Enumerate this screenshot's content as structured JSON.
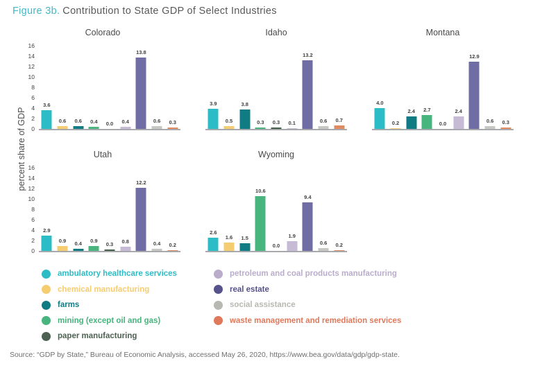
{
  "title": {
    "label": "Figure 3b.",
    "text": "Contribution to State GDP of Select Industries"
  },
  "chart_data": {
    "type": "bar",
    "title": "Figure 3b. Contribution to State GDP of Select Industries",
    "xlabel": "",
    "ylabel": "percent share of GDP",
    "ylim": [
      0,
      16
    ],
    "yticks": [
      0,
      2,
      4,
      6,
      8,
      10,
      12,
      14,
      16
    ],
    "grid": false,
    "legend_position": "bottom",
    "value_labels": true,
    "categories": [
      "ambulatory healthcare services",
      "chemical manufacturing",
      "farms",
      "mining (except oil and gas)",
      "paper manufacturing",
      "petroleum and coal products manufacturing",
      "real estate",
      "social assistance",
      "waste management and remediation services"
    ],
    "colors": [
      "#2bbcc6",
      "#f6cc70",
      "#0e7c82",
      "#47b57d",
      "#445c4c",
      "#c6bad5",
      "#6f6da4",
      "#c7c7c1",
      "#e08a62"
    ],
    "series": [
      {
        "name": "Colorado",
        "values": [
          3.6,
          0.6,
          0.6,
          0.4,
          0.0,
          0.4,
          13.8,
          0.6,
          0.3
        ]
      },
      {
        "name": "Idaho",
        "values": [
          3.9,
          0.5,
          3.8,
          0.3,
          0.3,
          0.1,
          13.2,
          0.6,
          0.7
        ]
      },
      {
        "name": "Montana",
        "values": [
          4.0,
          0.2,
          2.4,
          2.7,
          0.0,
          2.4,
          12.9,
          0.6,
          0.3
        ]
      },
      {
        "name": "Utah",
        "values": [
          2.9,
          0.9,
          0.4,
          0.9,
          0.3,
          0.8,
          12.2,
          0.4,
          0.2
        ]
      },
      {
        "name": "Wyoming",
        "values": [
          2.6,
          1.6,
          1.5,
          10.6,
          0.0,
          1.9,
          9.4,
          0.6,
          0.2
        ]
      }
    ]
  },
  "legend": {
    "items": [
      {
        "label": "ambulatory healthcare services",
        "color": "#2bbcc6"
      },
      {
        "label": "chemical manufacturing",
        "color": "#f6cc70"
      },
      {
        "label": "farms",
        "color": "#0e7c82"
      },
      {
        "label": "mining (except oil and gas)",
        "color": "#47b57d"
      },
      {
        "label": "paper manufacturing",
        "color": "#4d6152"
      },
      {
        "label": "petroleum and coal products manufacturing",
        "color": "#b9adcb"
      },
      {
        "label": "real estate",
        "color": "#56528a"
      },
      {
        "label": "social assistance",
        "color": "#b8b8b2"
      },
      {
        "label": "waste management and remediation services",
        "color": "#e0795b"
      }
    ]
  },
  "source": "Source: “GDP by State,” Bureau of Economic Analysis, accessed May 26, 2020, https://www.bea.gov/data/gdp/gdp-state."
}
